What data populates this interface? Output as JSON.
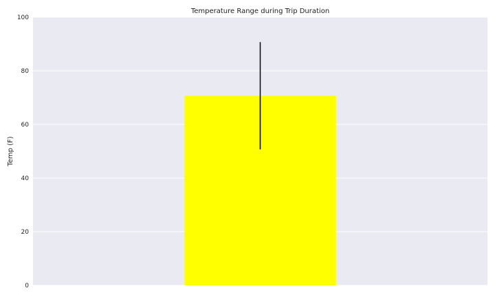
{
  "chart_data": {
    "type": "bar",
    "title": "Temperature Range during Trip Duration",
    "xlabel": "",
    "ylabel": "Temp (F)",
    "ylim": [
      0,
      100
    ],
    "yticks": [
      0,
      20,
      40,
      60,
      80,
      100
    ],
    "grid": true,
    "categories": [
      ""
    ],
    "values": [
      70.7
    ],
    "error": [
      20.0
    ],
    "colors": {
      "plot_background": "#EAEAF2",
      "grid": "#FFFFFF",
      "bar": "#FFFF00",
      "error_bar": "#111111"
    }
  }
}
